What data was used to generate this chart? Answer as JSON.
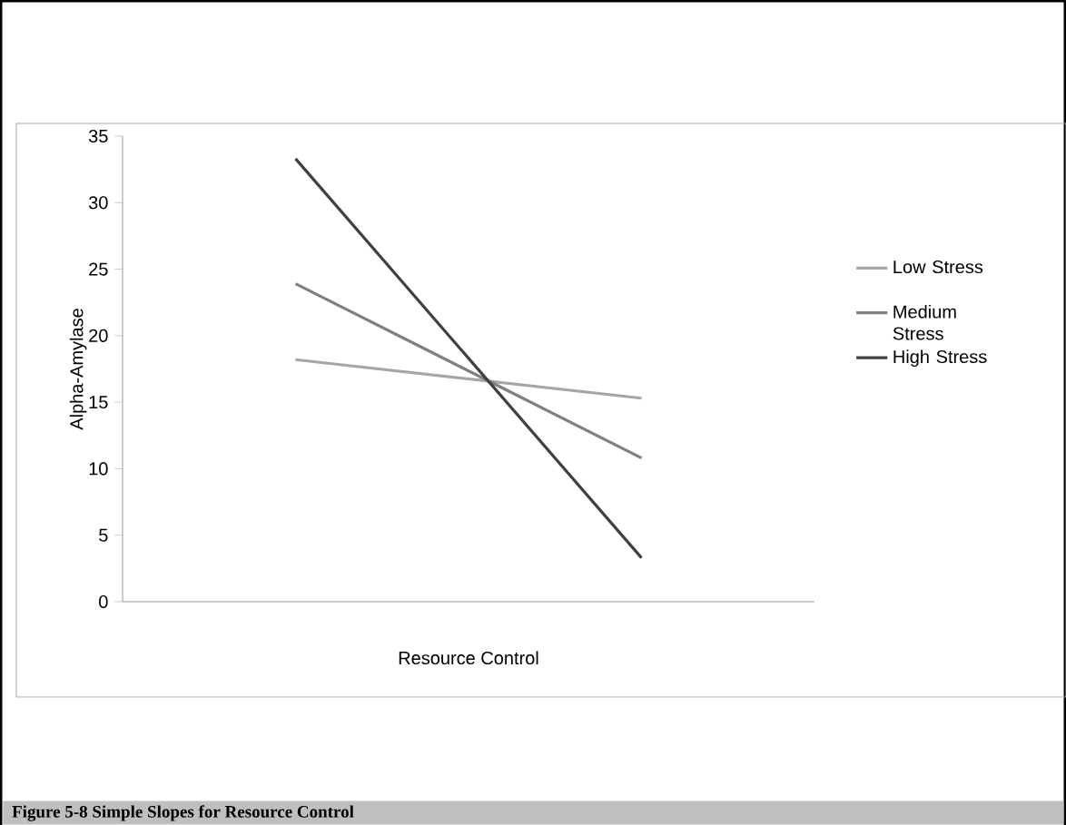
{
  "chart_data": {
    "type": "line",
    "categories": [
      null,
      null
    ],
    "xlabel": "Resource Control",
    "ylabel": "Alpha-Amylase",
    "ylim": [
      0,
      35
    ],
    "yticks": [
      0,
      5,
      10,
      15,
      20,
      25,
      30,
      35
    ],
    "series": [
      {
        "name": "Low Stress",
        "color": "#a6a6a6",
        "values": [
          18.2,
          15.3
        ]
      },
      {
        "name": "Medium Stress",
        "color": "#808080",
        "values": [
          23.9,
          10.8
        ]
      },
      {
        "name": "High Stress",
        "color": "#404040",
        "values": [
          33.3,
          3.3
        ]
      }
    ],
    "legend": "right",
    "grid": false,
    "marker": "none",
    "line_style": "solid",
    "annotations": [
      "Figure 5-8 Simple Slopes for Resource Control"
    ]
  }
}
